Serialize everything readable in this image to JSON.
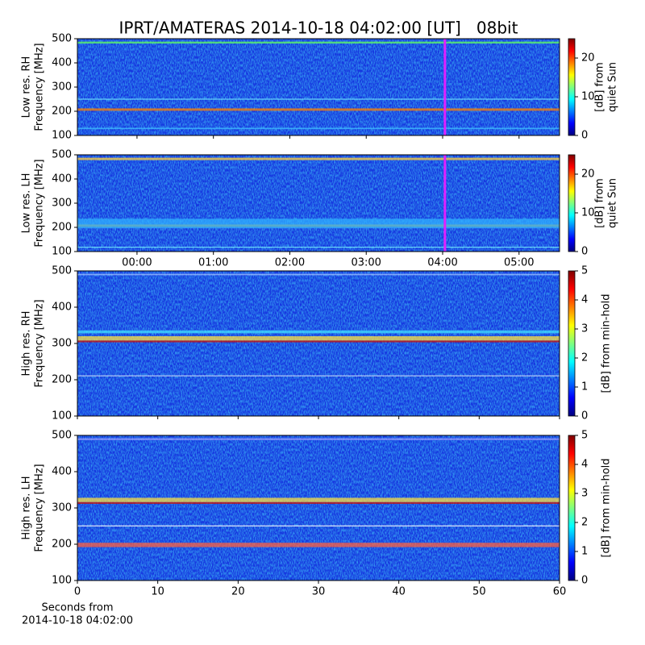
{
  "chart_data": [
    {
      "type": "heatmap",
      "title": "IPRT/AMATERAS 2014-10-18 04:02:00 [UT]   08bit",
      "ylabel": [
        "Low res. RH",
        "Frequency [MHz]"
      ],
      "ylim": [
        100,
        500
      ],
      "yticks": [
        100,
        200,
        300,
        400,
        500
      ],
      "xlim": [
        -0.78,
        5.53
      ],
      "xticks": [
        0,
        1,
        2,
        3,
        4,
        5
      ],
      "show_xticklabels": false,
      "marker_x": 4.03,
      "marker_color": "#e020ff",
      "colorbar": {
        "label": [
          "[dB] from",
          "quiet Sun"
        ],
        "lim": [
          0,
          25
        ],
        "ticks": [
          0,
          10,
          20
        ]
      }
    },
    {
      "type": "heatmap",
      "ylabel": [
        "Low res. LH",
        "Frequency [MHz]"
      ],
      "ylim": [
        100,
        500
      ],
      "yticks": [
        100,
        200,
        300,
        400,
        500
      ],
      "xlim": [
        -0.78,
        5.53
      ],
      "xticks": [
        {
          "value": 0,
          "label": "00:00"
        },
        {
          "value": 1,
          "label": "01:00"
        },
        {
          "value": 2,
          "label": "02:00"
        },
        {
          "value": 3,
          "label": "03:00"
        },
        {
          "value": 4,
          "label": "04:00"
        },
        {
          "value": 5,
          "label": "05:00"
        }
      ],
      "show_xticklabels": true,
      "marker_x": 4.03,
      "marker_color": "#e020ff",
      "colorbar": {
        "label": [
          "[dB] from",
          "quiet Sun"
        ],
        "lim": [
          0,
          25
        ],
        "ticks": [
          0,
          10,
          20
        ]
      }
    },
    {
      "type": "heatmap",
      "ylabel": [
        "High res. RH",
        "Frequency [MHz]"
      ],
      "ylim": [
        100,
        500
      ],
      "yticks": [
        100,
        200,
        300,
        400,
        500
      ],
      "xlim": [
        0,
        60
      ],
      "xticks": [
        0,
        10,
        20,
        30,
        40,
        50,
        60
      ],
      "show_xticklabels": false,
      "colorbar": {
        "label": [
          "[dB] from min-hold"
        ],
        "lim": [
          0,
          5
        ],
        "ticks": [
          0,
          1,
          2,
          3,
          4,
          5
        ]
      }
    },
    {
      "type": "heatmap",
      "ylabel": [
        "High res. LH",
        "Frequency [MHz]"
      ],
      "ylim": [
        100,
        500
      ],
      "yticks": [
        100,
        200,
        300,
        400,
        500
      ],
      "xlim": [
        0,
        60
      ],
      "xticks": [
        0,
        10,
        20,
        30,
        40,
        50,
        60
      ],
      "show_xticklabels": true,
      "xlabel": [
        "Seconds from",
        "2014-10-18 04:02:00"
      ],
      "colorbar": {
        "label": [
          "[dB] from min-hold"
        ],
        "lim": [
          0,
          5
        ],
        "ticks": [
          0,
          1,
          2,
          3,
          4,
          5
        ]
      }
    }
  ]
}
